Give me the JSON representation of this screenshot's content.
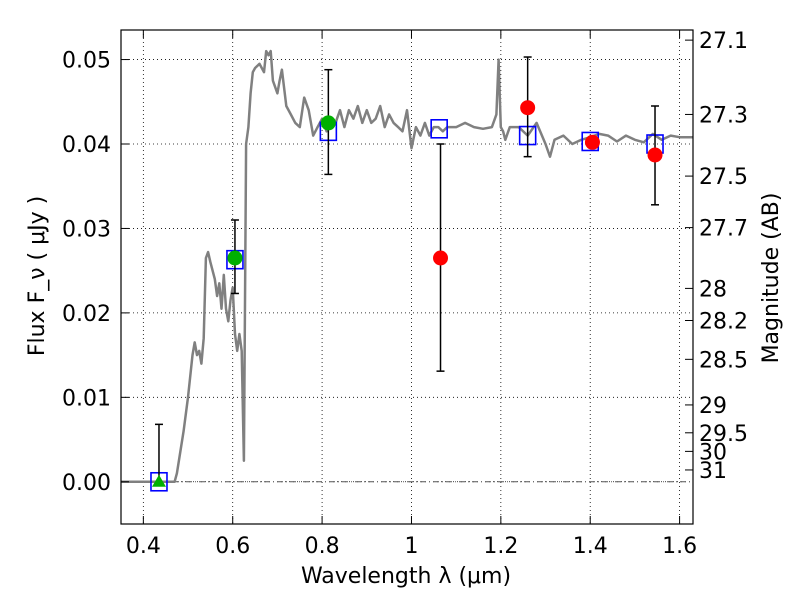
{
  "chart_data": {
    "type": "scatter",
    "xlabel": "Wavelength  λ (μm)",
    "ylabel": "Flux  F_ν  ( μJy )",
    "ylabel2": "Magnitude (AB)",
    "xlim": [
      0.35,
      1.63
    ],
    "ylim": [
      -0.005,
      0.0535
    ],
    "grid": true,
    "x_ticks": [
      {
        "value": 0.4,
        "label": "0.4"
      },
      {
        "value": 0.6,
        "label": "0.6"
      },
      {
        "value": 0.8,
        "label": "0.8"
      },
      {
        "value": 1.0,
        "label": "1"
      },
      {
        "value": 1.2,
        "label": "1.2"
      },
      {
        "value": 1.4,
        "label": "1.4"
      },
      {
        "value": 1.6,
        "label": "1.6"
      }
    ],
    "y_ticks": [
      {
        "value": 0.0,
        "label": "0.00"
      },
      {
        "value": 0.01,
        "label": "0.01"
      },
      {
        "value": 0.02,
        "label": "0.02"
      },
      {
        "value": 0.03,
        "label": "0.03"
      },
      {
        "value": 0.04,
        "label": "0.04"
      },
      {
        "value": 0.05,
        "label": "0.05"
      }
    ],
    "mag_ticks": [
      {
        "flux": 0.0523,
        "label": "27.1"
      },
      {
        "flux": 0.0435,
        "label": "27.3"
      },
      {
        "flux": 0.0362,
        "label": "27.5"
      },
      {
        "flux": 0.0301,
        "label": "27.7"
      },
      {
        "flux": 0.0229,
        "label": "28"
      },
      {
        "flux": 0.0191,
        "label": "28.2"
      },
      {
        "flux": 0.0145,
        "label": "28.5"
      },
      {
        "flux": 0.0091,
        "label": "29"
      },
      {
        "flux": 0.0058,
        "label": "29.5"
      },
      {
        "flux": 0.0036,
        "label": "30"
      },
      {
        "flux": 0.0014,
        "label": "31"
      }
    ],
    "zero_line": 0.0,
    "template_sed": {
      "color": "#808080",
      "x": [
        0.35,
        0.47,
        0.475,
        0.49,
        0.5,
        0.51,
        0.515,
        0.52,
        0.525,
        0.53,
        0.535,
        0.54,
        0.545,
        0.55,
        0.56,
        0.565,
        0.57,
        0.575,
        0.58,
        0.585,
        0.59,
        0.595,
        0.6,
        0.605,
        0.61,
        0.615,
        0.62,
        0.625,
        0.63,
        0.635,
        0.64,
        0.645,
        0.65,
        0.66,
        0.67,
        0.675,
        0.68,
        0.685,
        0.69,
        0.7,
        0.705,
        0.71,
        0.72,
        0.73,
        0.74,
        0.75,
        0.76,
        0.77,
        0.78,
        0.79,
        0.8,
        0.81,
        0.82,
        0.83,
        0.84,
        0.85,
        0.86,
        0.87,
        0.88,
        0.89,
        0.9,
        0.91,
        0.92,
        0.93,
        0.94,
        0.95,
        0.96,
        0.97,
        0.98,
        0.99,
        1.0,
        1.01,
        1.02,
        1.03,
        1.04,
        1.05,
        1.06,
        1.07,
        1.08,
        1.1,
        1.12,
        1.14,
        1.16,
        1.18,
        1.19,
        1.195,
        1.2,
        1.205,
        1.21,
        1.22,
        1.24,
        1.26,
        1.28,
        1.3,
        1.31,
        1.32,
        1.34,
        1.36,
        1.38,
        1.4,
        1.42,
        1.44,
        1.46,
        1.48,
        1.5,
        1.52,
        1.54,
        1.56,
        1.58,
        1.6,
        1.63
      ],
      "y": [
        0.0,
        0.0,
        0.001,
        0.006,
        0.01,
        0.015,
        0.0165,
        0.015,
        0.0155,
        0.014,
        0.017,
        0.0265,
        0.0272,
        0.026,
        0.024,
        0.022,
        0.0235,
        0.0205,
        0.0245,
        0.0205,
        0.019,
        0.0215,
        0.023,
        0.0175,
        0.0155,
        0.0175,
        0.0155,
        0.0025,
        0.04,
        0.042,
        0.046,
        0.0485,
        0.049,
        0.0495,
        0.0485,
        0.051,
        0.0505,
        0.051,
        0.0475,
        0.046,
        0.0475,
        0.0488,
        0.0445,
        0.0435,
        0.0425,
        0.042,
        0.0455,
        0.044,
        0.041,
        0.042,
        0.043,
        0.0415,
        0.043,
        0.0425,
        0.044,
        0.042,
        0.044,
        0.043,
        0.0445,
        0.0425,
        0.044,
        0.0425,
        0.043,
        0.0445,
        0.042,
        0.0435,
        0.0425,
        0.042,
        0.0415,
        0.044,
        0.0395,
        0.042,
        0.041,
        0.0425,
        0.041,
        0.042,
        0.042,
        0.0415,
        0.042,
        0.042,
        0.0425,
        0.042,
        0.0418,
        0.042,
        0.0435,
        0.05,
        0.042,
        0.0415,
        0.0405,
        0.042,
        0.042,
        0.041,
        0.0425,
        0.04,
        0.0385,
        0.0405,
        0.041,
        0.04,
        0.0405,
        0.0408,
        0.0412,
        0.041,
        0.0403,
        0.041,
        0.0405,
        0.0402,
        0.0412,
        0.0405,
        0.041,
        0.0408,
        0.0408
      ]
    },
    "series": [
      {
        "marker": "open-square",
        "color": "#0000ff",
        "x": [
          0.435,
          0.605,
          0.814,
          1.062,
          1.26,
          1.4,
          1.545
        ],
        "y": [
          0.0,
          0.0263,
          0.0415,
          0.0418,
          0.041,
          0.0403,
          0.04
        ]
      },
      {
        "marker": "circle",
        "color": "#00b000",
        "x": [
          0.605,
          0.814
        ],
        "y": [
          0.0265,
          0.0425
        ],
        "yerr_low": [
          0.0042,
          0.0061
        ],
        "yerr_high": [
          0.0045,
          0.0063
        ]
      },
      {
        "marker": "triangle",
        "color": "#00b000",
        "x": [
          0.435
        ],
        "y": [
          0.0
        ],
        "yerr_low": [
          0.0
        ],
        "yerr_high": [
          0.0068
        ]
      },
      {
        "marker": "circle",
        "color": "#ff0000",
        "x": [
          1.065,
          1.26,
          1.405,
          1.545
        ],
        "y": [
          0.0265,
          0.0443,
          0.0402,
          0.0387
        ],
        "yerr_low": [
          0.0134,
          0.0058,
          0.0,
          0.0059
        ],
        "yerr_high": [
          0.0135,
          0.006,
          0.0,
          0.0058
        ]
      }
    ]
  }
}
